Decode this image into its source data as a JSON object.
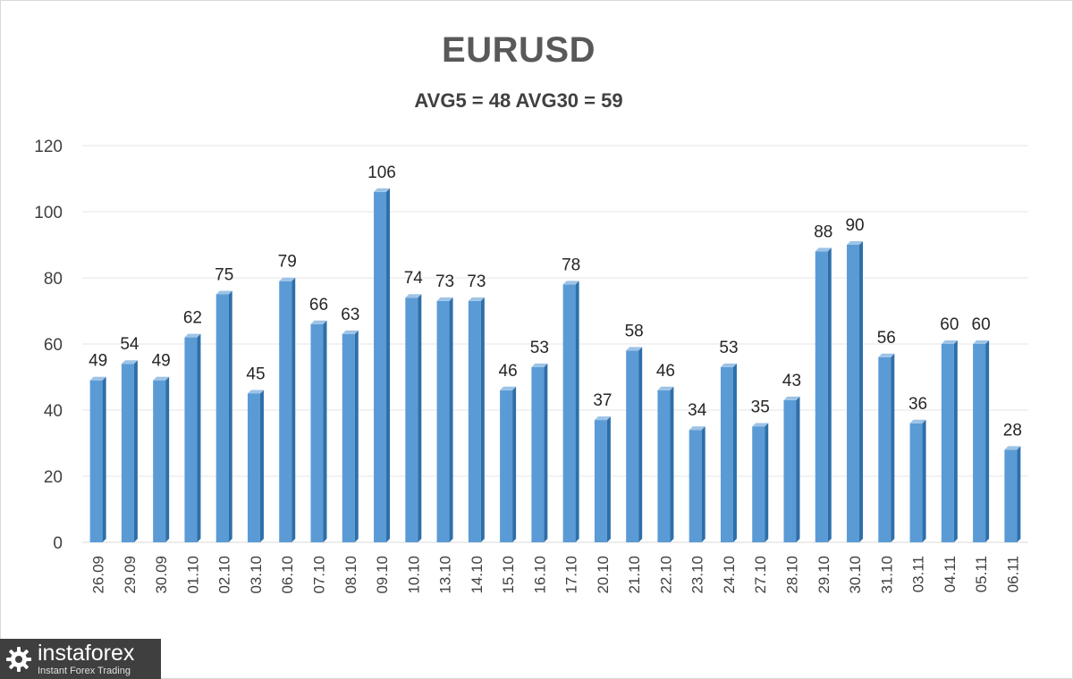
{
  "colors": {
    "bar_front": "#5b9bd5",
    "bar_side": "#2e6fa9",
    "bar_top": "#9dc3e6",
    "grid": "#e6e6e6",
    "axis_text": "#404040",
    "label_text": "#262626"
  },
  "logo": {
    "name": "instaforex",
    "tagline": "Instant Forex Trading",
    "icon": "gear-logo-icon"
  },
  "chart_data": {
    "type": "bar",
    "title": "EURUSD",
    "subtitle": "AVG5 = 48 AVG30 = 59",
    "xlabel": "",
    "ylabel": "",
    "ylim": [
      0,
      120
    ],
    "yticks": [
      0,
      20,
      40,
      60,
      80,
      100,
      120
    ],
    "grid": true,
    "legend": "none",
    "data_labels": true,
    "categories": [
      "26.09",
      "29.09",
      "30.09",
      "01.10",
      "02.10",
      "03.10",
      "06.10",
      "07.10",
      "08.10",
      "09.10",
      "10.10",
      "13.10",
      "14.10",
      "15.10",
      "16.10",
      "17.10",
      "20.10",
      "21.10",
      "22.10",
      "23.10",
      "24.10",
      "27.10",
      "28.10",
      "29.10",
      "30.10",
      "31.10",
      "03.11",
      "04.11",
      "05.11",
      "06.11"
    ],
    "values": [
      49,
      54,
      49,
      62,
      75,
      45,
      79,
      66,
      63,
      106,
      74,
      73,
      73,
      46,
      53,
      78,
      37,
      58,
      46,
      34,
      53,
      35,
      43,
      88,
      90,
      56,
      36,
      60,
      60,
      28
    ]
  }
}
